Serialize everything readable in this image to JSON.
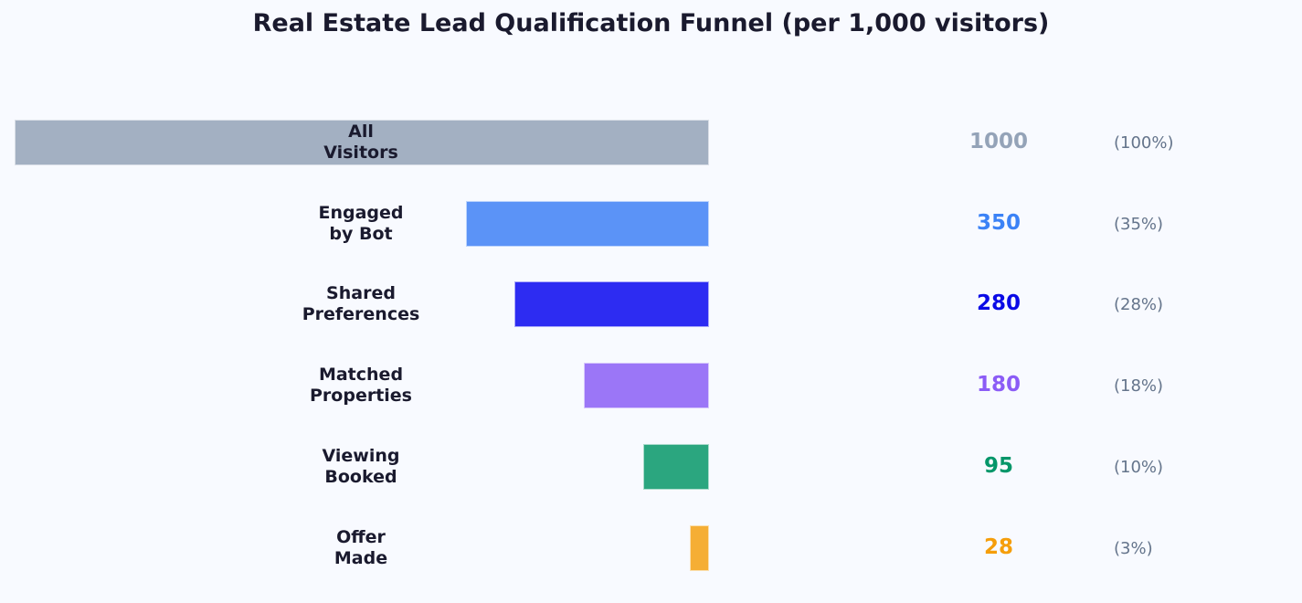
{
  "title": "Real Estate Lead Qualification Funnel (per 1,000 visitors)",
  "stages": [
    {
      "label": "All\nVisitors",
      "value": "1000",
      "pct": "(100%)",
      "bar_color": "#a3b0c2",
      "value_color": "#94a3b8"
    },
    {
      "label": "Engaged\nby Bot",
      "value": "350",
      "pct": "(35%)",
      "bar_color": "#5b93f7",
      "value_color": "#3b82f6"
    },
    {
      "label": "Shared\nPreferences",
      "value": "280",
      "pct": "(28%)",
      "bar_color": "#2d2cf2",
      "value_color": "#0a0ae6"
    },
    {
      "label": "Matched\nProperties",
      "value": "180",
      "pct": "(18%)",
      "bar_color": "#9b76f7",
      "value_color": "#8b5cf6"
    },
    {
      "label": "Viewing\nBooked",
      "value": "95",
      "pct": "(10%)",
      "bar_color": "#2ba67f",
      "value_color": "#059669"
    },
    {
      "label": "Offer\nMade",
      "value": "28",
      "pct": "(3%)",
      "bar_color": "#f5ae35",
      "value_color": "#f59e0b"
    }
  ],
  "chart_data": {
    "type": "bar",
    "orientation": "horizontal",
    "title": "Real Estate Lead Qualification Funnel (per 1,000 visitors)",
    "categories": [
      "All Visitors",
      "Engaged by Bot",
      "Shared Preferences",
      "Matched Properties",
      "Viewing Booked",
      "Offer Made"
    ],
    "values": [
      1000,
      350,
      280,
      180,
      95,
      28
    ],
    "percentages": [
      "100%",
      "35%",
      "28%",
      "18%",
      "10%",
      "3%"
    ],
    "colors": [
      "#a3b0c2",
      "#5b93f7",
      "#2d2cf2",
      "#9b76f7",
      "#2ba67f",
      "#f5ae35"
    ],
    "xlabel": "",
    "ylabel": "",
    "xlim": [
      0,
      1000
    ],
    "grid": false,
    "legend": "none",
    "bars_aligned": "right"
  }
}
